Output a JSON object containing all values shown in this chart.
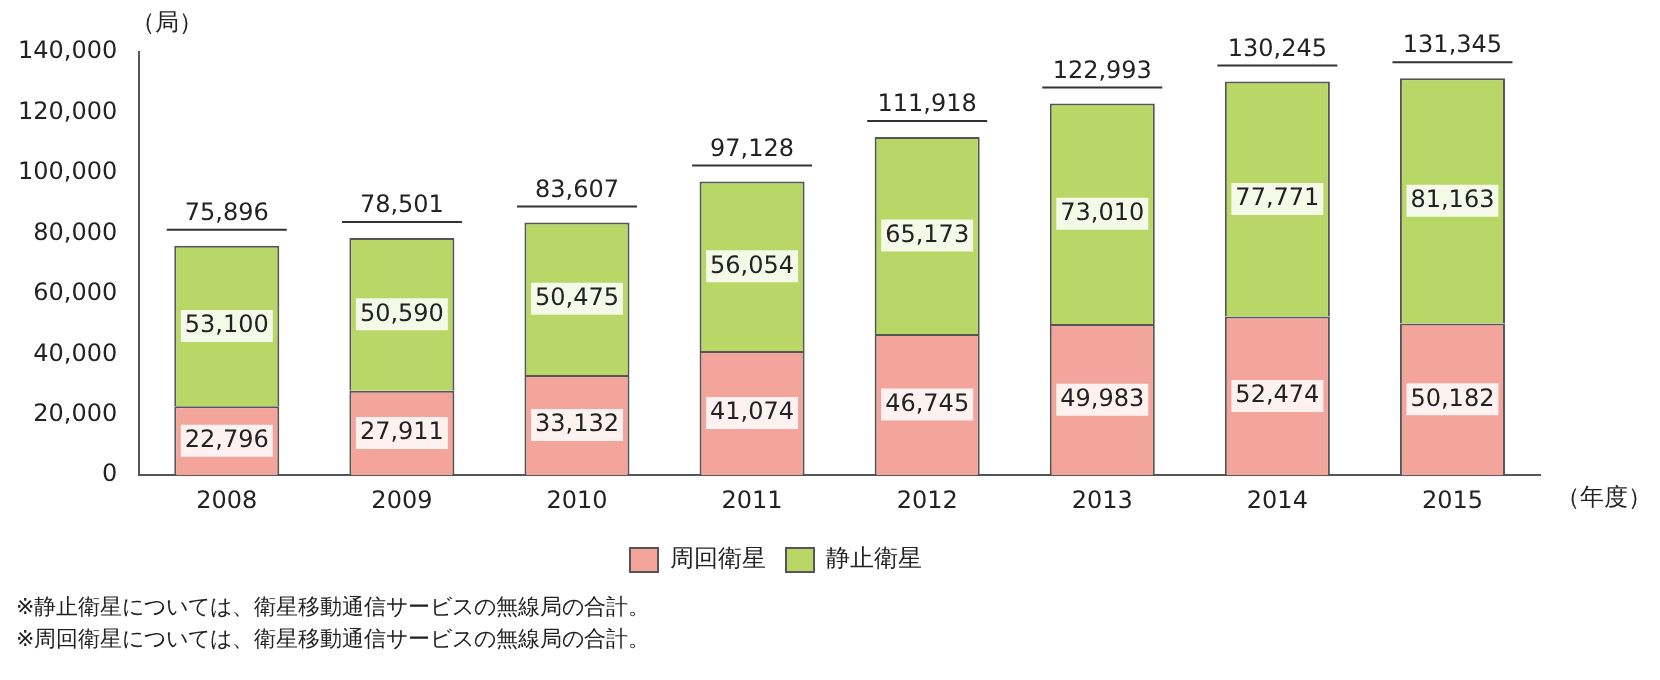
{
  "chart_data": {
    "type": "bar",
    "stacked": true,
    "ylabel": "（局）",
    "xlabel": "（年度）",
    "categories": [
      "2008",
      "2009",
      "2010",
      "2011",
      "2012",
      "2013",
      "2014",
      "2015"
    ],
    "series": [
      {
        "name": "周回衛星",
        "color": "#f3a59b",
        "values": [
          22796,
          27911,
          33132,
          41074,
          46745,
          49983,
          52474,
          50182
        ],
        "value_labels": [
          "22,796",
          "27,911",
          "33,132",
          "41,074",
          "46,745",
          "49,983",
          "52,474",
          "50,182"
        ]
      },
      {
        "name": "静止衛星",
        "color": "#b9d766",
        "values": [
          53100,
          50590,
          50475,
          56054,
          65173,
          73010,
          77771,
          81163
        ],
        "value_labels": [
          "53,100",
          "50,590",
          "50,475",
          "56,054",
          "65,173",
          "73,010",
          "77,771",
          "81,163"
        ]
      }
    ],
    "totals": [
      "75,896",
      "78,501",
      "83,607",
      "97,128",
      "111,918",
      "122,993",
      "130,245",
      "131,345"
    ],
    "ylim": [
      0,
      140000
    ],
    "yticks": [
      {
        "value": 0,
        "label": "0"
      },
      {
        "value": 20000,
        "label": "20,000"
      },
      {
        "value": 40000,
        "label": "40,000"
      },
      {
        "value": 60000,
        "label": "60,000"
      },
      {
        "value": 80000,
        "label": "80,000"
      },
      {
        "value": 100000,
        "label": "100,000"
      },
      {
        "value": 120000,
        "label": "120,000"
      },
      {
        "value": 140000,
        "label": "140,000"
      }
    ],
    "grid": false,
    "legend": "bottom",
    "annotations": [
      "※静止衛星については、衛星移動通信サービスの無線局の合計。",
      "※周回衛星については、衛星移動通信サービスの無線局の合計。"
    ]
  }
}
